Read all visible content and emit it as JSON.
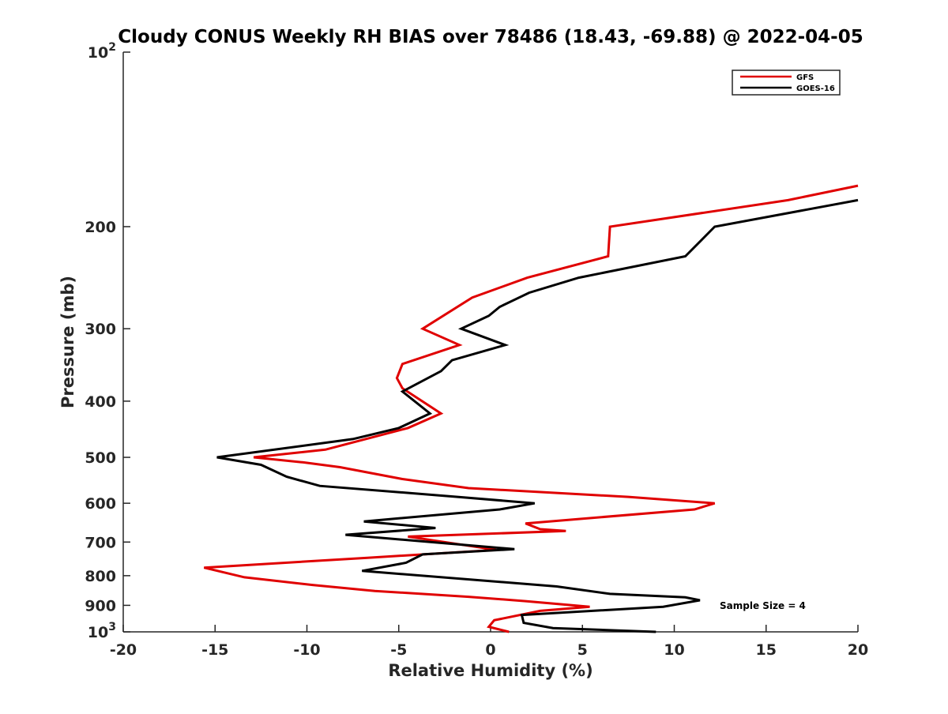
{
  "chart_data": {
    "type": "line",
    "title": "Cloudy CONUS Weekly RH BIAS over 78486 (18.43, -69.88) @ 2022-04-05",
    "xlabel": "Relative Humidity (%)",
    "ylabel": "Pressure (mb)",
    "xlim": [
      -20,
      20
    ],
    "ylim": [
      100,
      1000
    ],
    "y_scale": "log",
    "y_reversed": true,
    "grid": false,
    "legend_position": "top-right",
    "x_ticks": [
      "-20",
      "-15",
      "-10",
      "-5",
      "0",
      "5",
      "10",
      "15",
      "20"
    ],
    "y_ticks": [
      {
        "value": 100,
        "base": "10",
        "exp": "2"
      },
      {
        "value": 200,
        "label": "200"
      },
      {
        "value": 300,
        "label": "300"
      },
      {
        "value": 400,
        "label": "400"
      },
      {
        "value": 500,
        "label": "500"
      },
      {
        "value": 600,
        "label": "600"
      },
      {
        "value": 700,
        "label": "700"
      },
      {
        "value": 800,
        "label": "800"
      },
      {
        "value": 900,
        "label": "900"
      },
      {
        "value": 1000,
        "base": "10",
        "exp": "3"
      }
    ],
    "annotation": "Sample Size = 4",
    "series": [
      {
        "name": "GFS",
        "color": "#e00000",
        "points": [
          [
            20.0,
            170
          ],
          [
            16.2,
            180
          ],
          [
            6.5,
            200
          ],
          [
            6.4,
            225
          ],
          [
            2.0,
            245
          ],
          [
            -1.0,
            265
          ],
          [
            -3.7,
            300
          ],
          [
            -1.7,
            320
          ],
          [
            -4.8,
            345
          ],
          [
            -5.1,
            365
          ],
          [
            -4.8,
            380
          ],
          [
            -2.7,
            420
          ],
          [
            -4.5,
            445
          ],
          [
            -9.0,
            485
          ],
          [
            -12.9,
            500
          ],
          [
            -10.2,
            510
          ],
          [
            -8.2,
            520
          ],
          [
            -4.8,
            545
          ],
          [
            -1.2,
            565
          ],
          [
            7.5,
            585
          ],
          [
            12.2,
            600
          ],
          [
            11.1,
            615
          ],
          [
            1.9,
            650
          ],
          [
            2.7,
            665
          ],
          [
            4.1,
            670
          ],
          [
            -4.5,
            685
          ],
          [
            0.3,
            722
          ],
          [
            -6.7,
            745
          ],
          [
            -15.6,
            775
          ],
          [
            -13.4,
            805
          ],
          [
            -9.7,
            830
          ],
          [
            -6.3,
            850
          ],
          [
            -1.2,
            870
          ],
          [
            1.9,
            885
          ],
          [
            5.4,
            905
          ],
          [
            2.7,
            920
          ],
          [
            0.2,
            955
          ],
          [
            -0.1,
            980
          ],
          [
            1.0,
            1000
          ]
        ]
      },
      {
        "name": "GOES-16",
        "color": "#000000",
        "points": [
          [
            20.0,
            180
          ],
          [
            12.2,
            200
          ],
          [
            10.6,
            225
          ],
          [
            4.8,
            245
          ],
          [
            2.1,
            260
          ],
          [
            0.5,
            275
          ],
          [
            -0.1,
            285
          ],
          [
            -1.6,
            300
          ],
          [
            0.8,
            320
          ],
          [
            -2.1,
            340
          ],
          [
            -2.7,
            355
          ],
          [
            -4.8,
            385
          ],
          [
            -3.3,
            420
          ],
          [
            -5.0,
            445
          ],
          [
            -7.5,
            465
          ],
          [
            -14.9,
            500
          ],
          [
            -12.5,
            515
          ],
          [
            -11.1,
            540
          ],
          [
            -9.3,
            560
          ],
          [
            -1.8,
            585
          ],
          [
            2.4,
            600
          ],
          [
            0.5,
            615
          ],
          [
            -6.9,
            645
          ],
          [
            -3.0,
            662
          ],
          [
            -7.9,
            680
          ],
          [
            1.3,
            720
          ],
          [
            -3.7,
            735
          ],
          [
            -4.6,
            760
          ],
          [
            -7.0,
            785
          ],
          [
            3.6,
            835
          ],
          [
            6.5,
            860
          ],
          [
            10.6,
            872
          ],
          [
            11.4,
            882
          ],
          [
            9.4,
            905
          ],
          [
            1.7,
            935
          ],
          [
            1.8,
            965
          ],
          [
            3.4,
            985
          ],
          [
            9.0,
            1000
          ]
        ]
      }
    ]
  }
}
